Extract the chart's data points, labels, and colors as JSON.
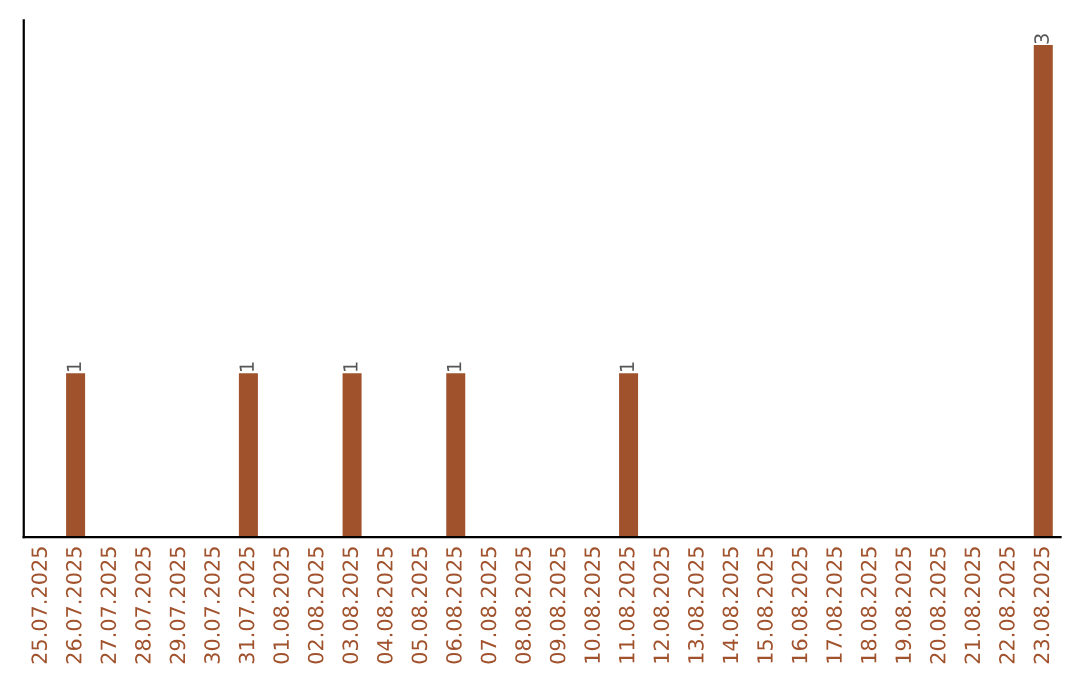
{
  "chart_data": {
    "type": "bar",
    "categories": [
      "25.07.2025",
      "26.07.2025",
      "27.07.2025",
      "28.07.2025",
      "29.07.2025",
      "30.07.2025",
      "31.07.2025",
      "01.08.2025",
      "02.08.2025",
      "03.08.2025",
      "04.08.2025",
      "05.08.2025",
      "06.08.2025",
      "07.08.2025",
      "08.08.2025",
      "09.08.2025",
      "10.08.2025",
      "11.08.2025",
      "12.08.2025",
      "13.08.2025",
      "14.08.2025",
      "15.08.2025",
      "16.08.2025",
      "17.08.2025",
      "18.08.2025",
      "19.08.2025",
      "20.08.2025",
      "21.08.2025",
      "22.08.2025",
      "23.08.2025"
    ],
    "values": [
      0,
      1,
      0,
      0,
      0,
      0,
      1,
      0,
      0,
      1,
      0,
      0,
      1,
      0,
      0,
      0,
      0,
      1,
      0,
      0,
      0,
      0,
      0,
      0,
      0,
      0,
      0,
      0,
      0,
      3
    ],
    "value_labels": [
      null,
      "1",
      null,
      null,
      null,
      null,
      "1",
      null,
      null,
      "1",
      null,
      null,
      "1",
      null,
      null,
      null,
      null,
      "1",
      null,
      null,
      null,
      null,
      null,
      null,
      null,
      null,
      null,
      null,
      null,
      "3"
    ],
    "color": "#a0522d",
    "tick_labels": "x",
    "grid": false
  }
}
